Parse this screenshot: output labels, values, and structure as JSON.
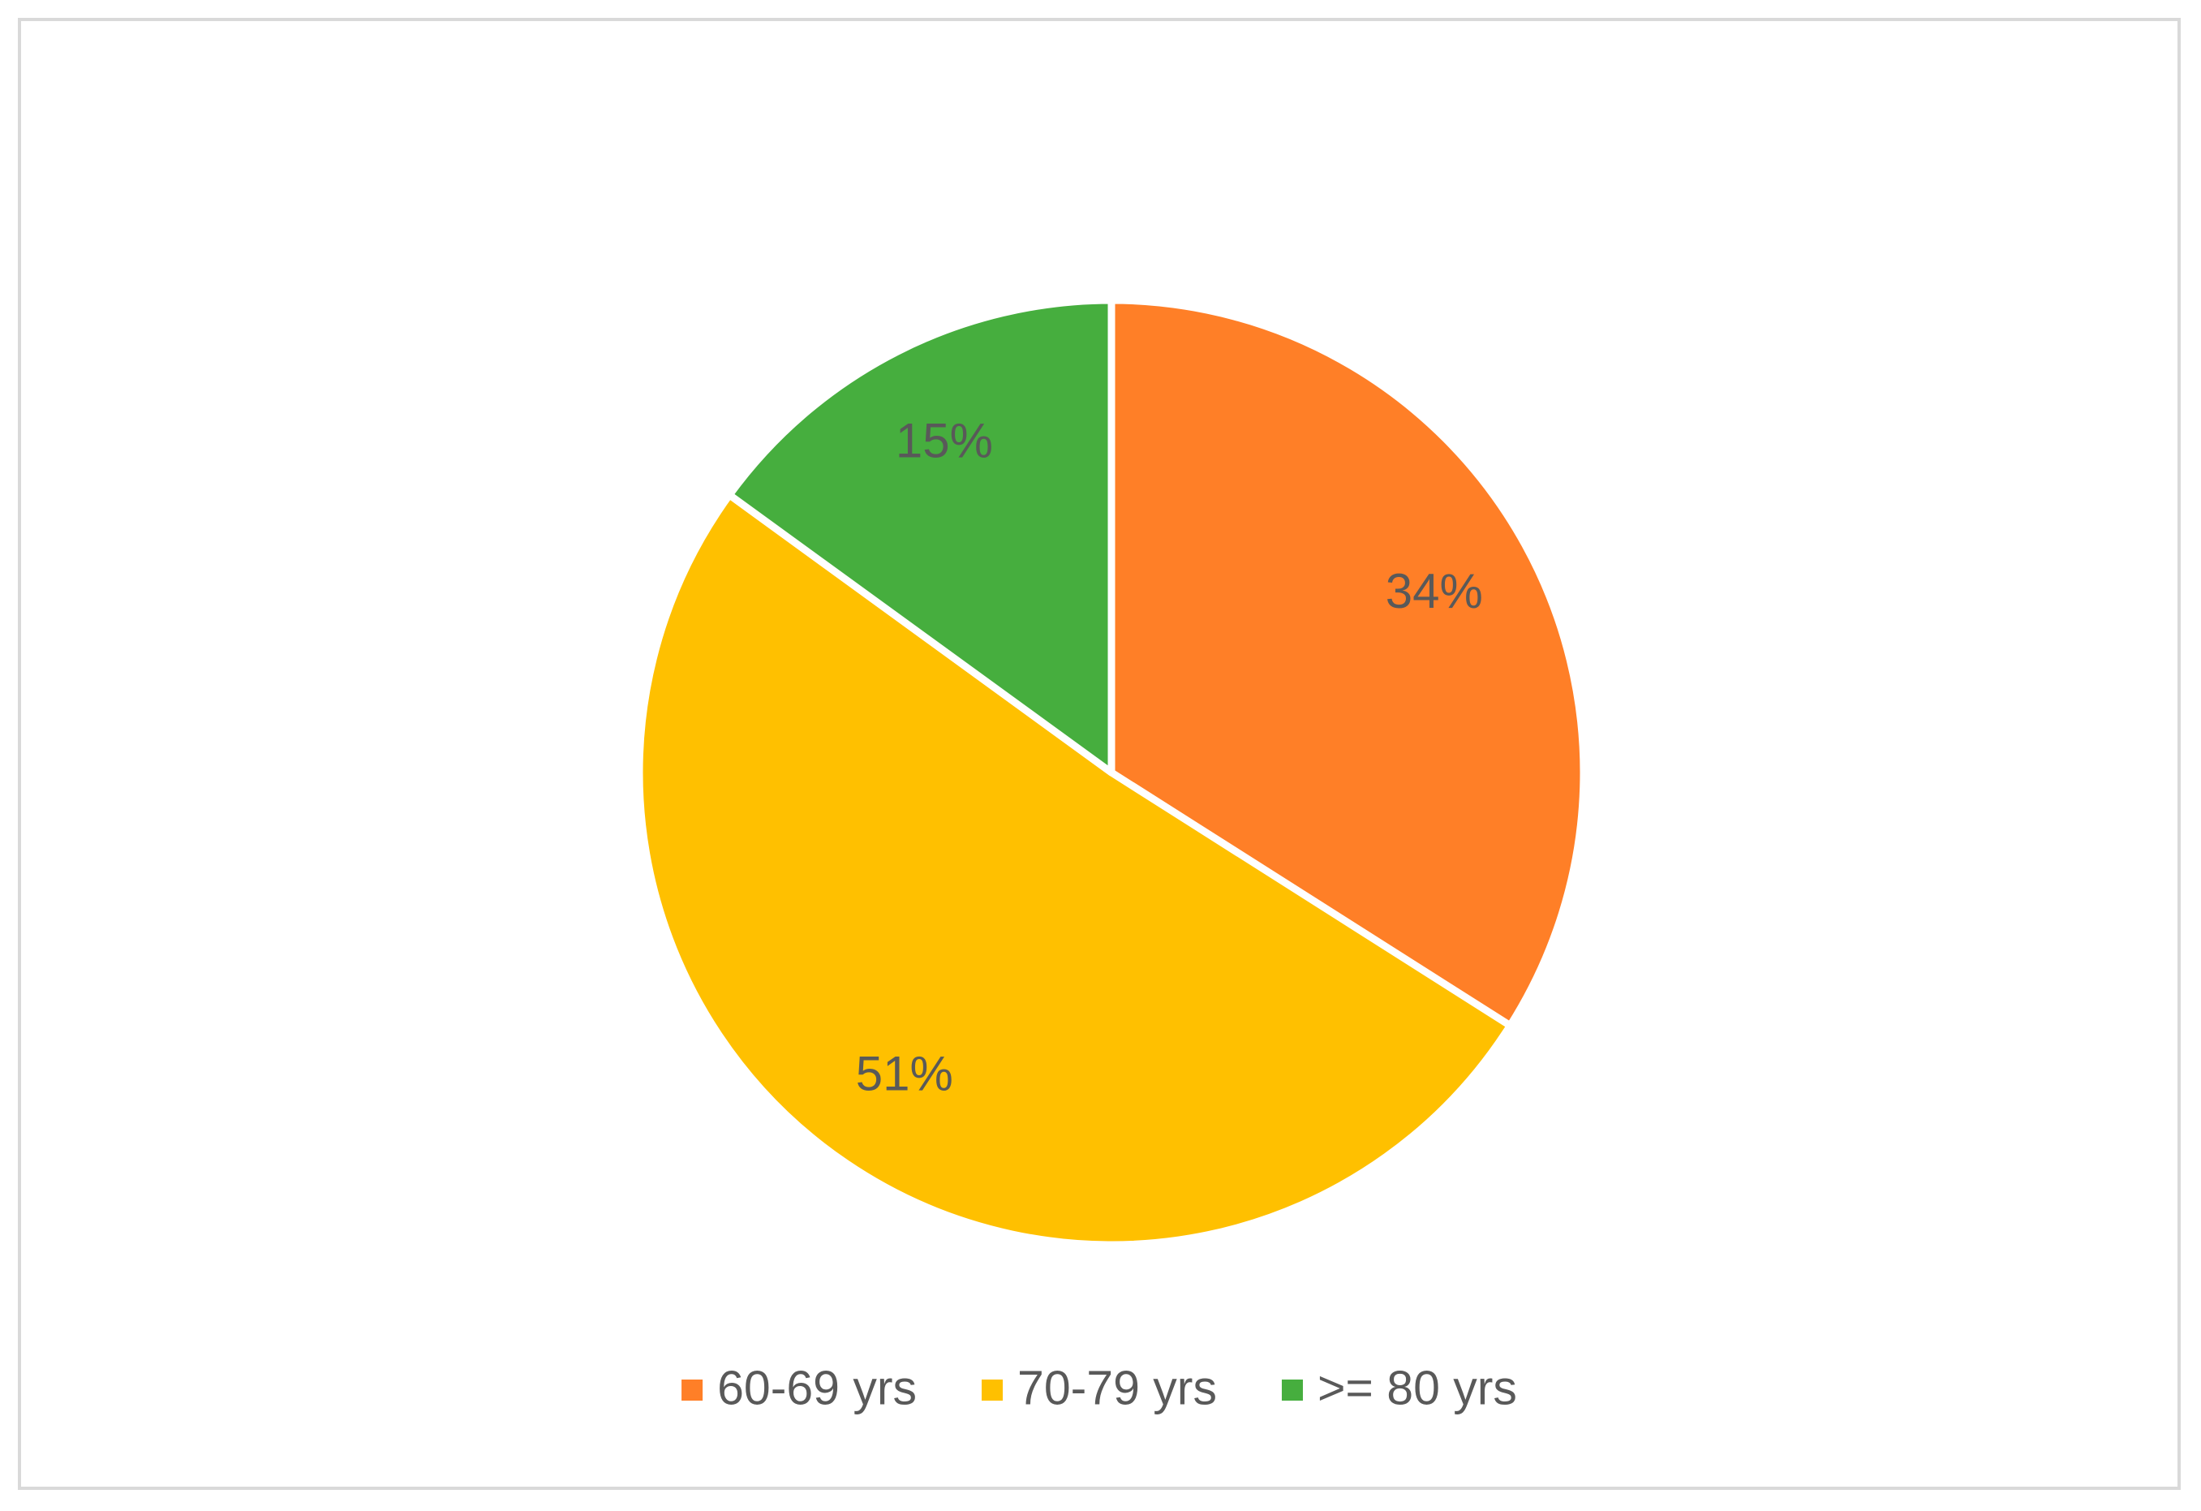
{
  "chart_data": {
    "type": "pie",
    "categories": [
      "60-69 yrs",
      "70-79 yrs",
      ">= 80 yrs"
    ],
    "values": [
      34,
      51,
      15
    ],
    "value_labels": [
      "34%",
      "51%",
      "15%"
    ],
    "colors": [
      "#FF7F27",
      "#FFC000",
      "#46AE3E"
    ],
    "legend": "bottom"
  }
}
